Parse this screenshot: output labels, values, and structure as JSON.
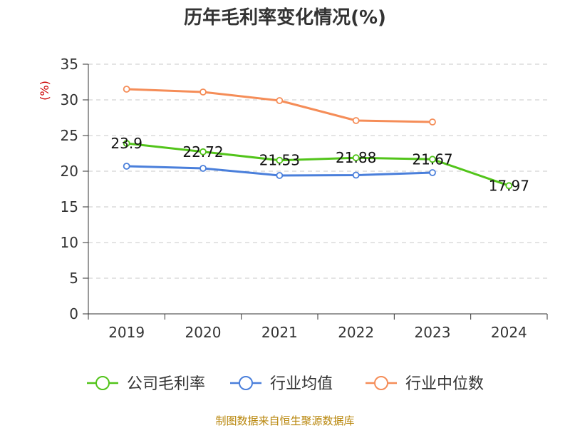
{
  "chart_data": {
    "type": "line",
    "title": "历年毛利率变化情况(%)",
    "ylabel": "(%)",
    "xlabel": "",
    "categories": [
      "2019",
      "2020",
      "2021",
      "2022",
      "2023",
      "2024"
    ],
    "ylim": [
      0,
      35
    ],
    "yticks": [
      0,
      5,
      10,
      15,
      20,
      25,
      30,
      35
    ],
    "grid": true,
    "legend_position": "bottom",
    "series": [
      {
        "name": "公司毛利率",
        "color": "#52c41a",
        "values": [
          23.9,
          22.72,
          21.53,
          21.88,
          21.67,
          17.97
        ],
        "labels": [
          "23.9",
          "22.72",
          "21.53",
          "21.88",
          "21.67",
          "17.97"
        ]
      },
      {
        "name": "行业均值",
        "color": "#4a7fdb",
        "values": [
          20.7,
          20.4,
          19.4,
          19.45,
          19.8,
          null
        ]
      },
      {
        "name": "行业中位数",
        "color": "#f58d58",
        "values": [
          31.5,
          31.1,
          29.9,
          27.1,
          26.9,
          null
        ]
      }
    ],
    "unit_color": "#cc0000"
  },
  "source": {
    "text": "制图数据来自恒生聚源数据库",
    "color": "#b8860b"
  }
}
